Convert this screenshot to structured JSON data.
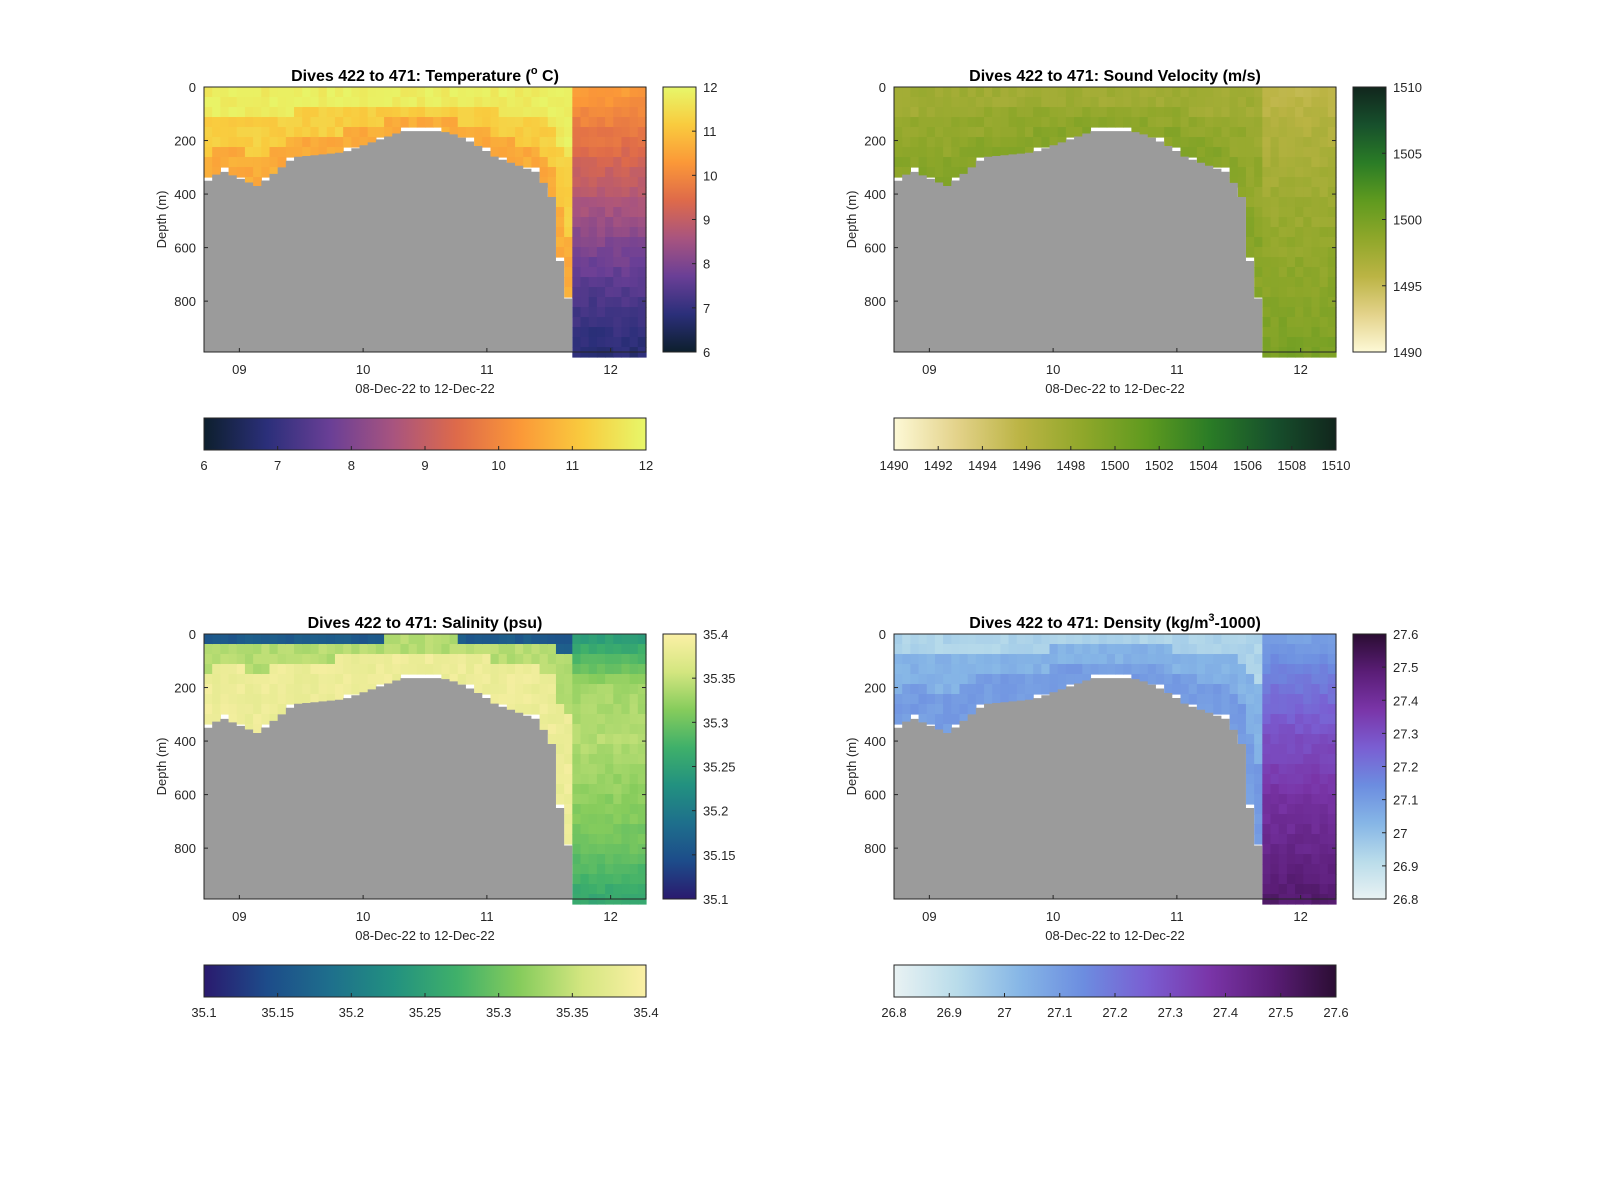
{
  "figure": {
    "background": "#ffffff",
    "bathymetry_color": "#9b9b9b"
  },
  "chart_data": [
    {
      "type": "heatmap",
      "id": "temperature",
      "title_prefix": "Dives 422 to 471: Temperature (",
      "title_super": "o",
      "title_suffix": " C)",
      "xlabel": "08-Dec-22 to 12-Dec-22",
      "ylabel": "Depth (m)",
      "xticks": [
        "09",
        "10",
        "11",
        "12"
      ],
      "yticks": [
        "0",
        "200",
        "400",
        "600",
        "800"
      ],
      "ylim": [
        0,
        990
      ],
      "clim": [
        6,
        12
      ],
      "colorbar_right_ticks": [
        "12",
        "11",
        "10",
        "9",
        "8",
        "7",
        "6"
      ],
      "colorbar_bottom_ticks": [
        "6",
        "7",
        "8",
        "9",
        "10",
        "11",
        "12"
      ],
      "colormap": [
        "#0d1f2d",
        "#2b2f7a",
        "#6a3f96",
        "#a8547f",
        "#de6a4a",
        "#fb9838",
        "#f9cb3e",
        "#e7f76a"
      ],
      "profile_layers": [
        {
          "depth_fraction_max": 0.35,
          "value": 11.8
        },
        {
          "depth_fraction_max": 0.7,
          "value": 11.2
        },
        {
          "depth_fraction_max": 1.0,
          "value": 10.6
        }
      ],
      "deep_profile": [
        10.4,
        9.6,
        8.8,
        8.0,
        7.3,
        6.8
      ]
    },
    {
      "type": "heatmap",
      "id": "sound_velocity",
      "title_prefix": "Dives 422 to 471: Sound Velocity (m/s)",
      "title_super": "",
      "title_suffix": "",
      "xlabel": "08-Dec-22 to 12-Dec-22",
      "ylabel": "Depth (m)",
      "xticks": [
        "09",
        "10",
        "11",
        "12"
      ],
      "yticks": [
        "0",
        "200",
        "400",
        "600",
        "800"
      ],
      "ylim": [
        0,
        990
      ],
      "clim": [
        1490,
        1510
      ],
      "colorbar_right_ticks": [
        "1510",
        "1505",
        "1500",
        "1495",
        "1490"
      ],
      "colorbar_bottom_ticks": [
        "1490",
        "1492",
        "1494",
        "1496",
        "1498",
        "1500",
        "1502",
        "1504",
        "1506",
        "1508",
        "1510"
      ],
      "colormap": [
        "#fdf9d6",
        "#e3d28a",
        "#bbb444",
        "#8fa72a",
        "#5f9a1f",
        "#2a7c26",
        "#17502c",
        "#11261d"
      ],
      "profile_layers": [
        {
          "depth_fraction_max": 0.35,
          "value": 1497.5
        },
        {
          "depth_fraction_max": 0.7,
          "value": 1498.3
        },
        {
          "depth_fraction_max": 1.0,
          "value": 1499.0
        }
      ],
      "deep_profile": [
        1495.5,
        1496.5,
        1497.5,
        1498.3,
        1499.0,
        1499.8
      ]
    },
    {
      "type": "heatmap",
      "id": "salinity",
      "title_prefix": "Dives 422 to 471: Salinity (psu)",
      "title_super": "",
      "title_suffix": "",
      "xlabel": "08-Dec-22 to 12-Dec-22",
      "ylabel": "Depth (m)",
      "xticks": [
        "09",
        "10",
        "11",
        "12"
      ],
      "yticks": [
        "0",
        "200",
        "400",
        "600",
        "800"
      ],
      "ylim": [
        0,
        990
      ],
      "clim": [
        35.1,
        35.4
      ],
      "colorbar_right_ticks": [
        "35.4",
        "35.35",
        "35.3",
        "35.25",
        "35.2",
        "35.15",
        "35.1"
      ],
      "colorbar_bottom_ticks": [
        "35.1",
        "35.15",
        "35.2",
        "35.25",
        "35.3",
        "35.35",
        "35.4"
      ],
      "colormap": [
        "#2a1a6e",
        "#1d4c8a",
        "#1e6f8c",
        "#229180",
        "#3fb06a",
        "#86cc5c",
        "#d4e680",
        "#fbf0a6"
      ],
      "profile_layers": [
        {
          "depth_fraction_max": 0.1,
          "value": 35.16
        },
        {
          "depth_fraction_max": 0.38,
          "value": 35.34
        },
        {
          "depth_fraction_max": 1.0,
          "value": 35.385
        }
      ],
      "deep_profile": [
        35.24,
        35.33,
        35.34,
        35.32,
        35.3,
        35.26
      ]
    },
    {
      "type": "heatmap",
      "id": "density",
      "title_prefix": "Dives 422 to 471: Density (kg/m",
      "title_super": "3",
      "title_suffix": "-1000)",
      "xlabel": "08-Dec-22 to 12-Dec-22",
      "ylabel": "Depth (m)",
      "xticks": [
        "09",
        "10",
        "11",
        "12"
      ],
      "yticks": [
        "0",
        "200",
        "400",
        "600",
        "800"
      ],
      "ylim": [
        0,
        990
      ],
      "clim": [
        26.8,
        27.6
      ],
      "colorbar_right_ticks": [
        "27.6",
        "27.5",
        "27.4",
        "27.3",
        "27.2",
        "27.1",
        "27",
        "26.9",
        "26.8"
      ],
      "colorbar_bottom_ticks": [
        "26.8",
        "26.9",
        "27",
        "27.1",
        "27.2",
        "27.3",
        "27.4",
        "27.5",
        "27.6"
      ],
      "colormap": [
        "#e9f2f3",
        "#b9dcea",
        "#86b6e6",
        "#6c8de0",
        "#7a5ed2",
        "#7a35a8",
        "#5a1d76",
        "#2b0d33"
      ],
      "profile_layers": [
        {
          "depth_fraction_max": 0.25,
          "value": 26.94
        },
        {
          "depth_fraction_max": 0.6,
          "value": 27.04
        },
        {
          "depth_fraction_max": 1.0,
          "value": 27.1
        }
      ],
      "deep_profile": [
        27.08,
        27.2,
        27.3,
        27.38,
        27.44,
        27.5
      ]
    }
  ]
}
